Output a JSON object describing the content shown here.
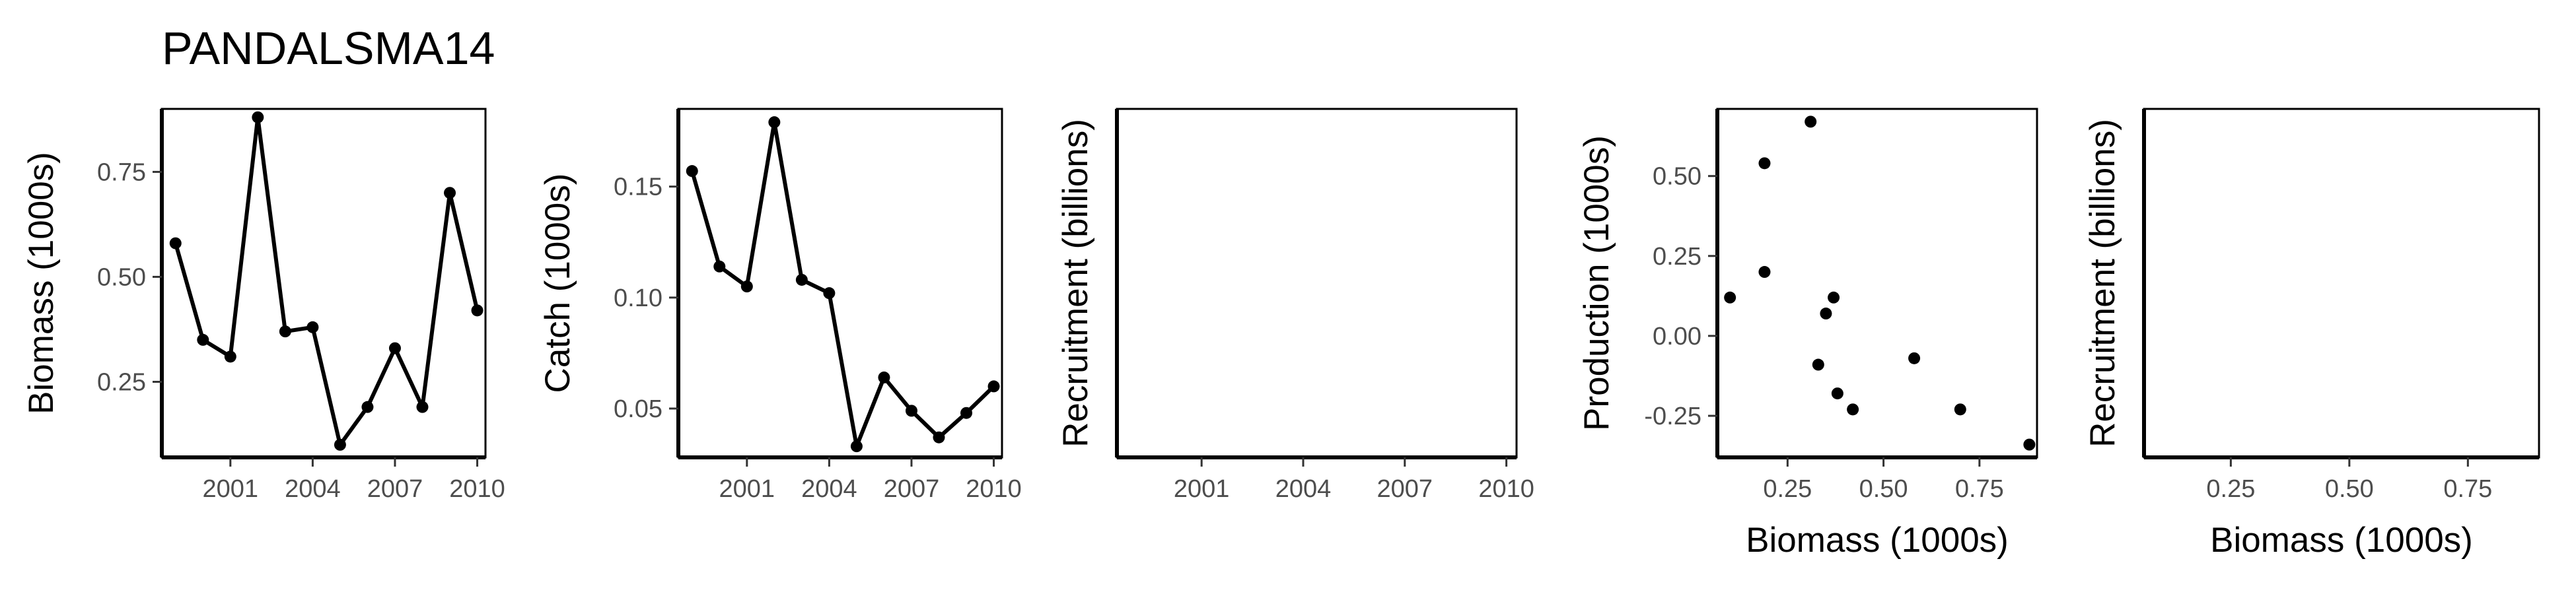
{
  "title": "PANDALSMA14",
  "chart_data": [
    {
      "type": "line",
      "ylabel": "Biomass (1000s)",
      "xlabel": "",
      "x": [
        1999,
        2000,
        2001,
        2002,
        2003,
        2004,
        2005,
        2006,
        2007,
        2008,
        2009,
        2010
      ],
      "values": [
        0.58,
        0.35,
        0.31,
        0.88,
        0.37,
        0.38,
        0.1,
        0.19,
        0.33,
        0.19,
        0.7,
        0.42
      ],
      "xlim": [
        1998.5,
        2010.3
      ],
      "ylim": [
        0.07,
        0.9
      ],
      "xticks": [
        2001,
        2004,
        2007,
        2010
      ],
      "yticks": [
        0.25,
        0.5,
        0.75
      ],
      "xtick_labels": [
        "2001",
        "2004",
        "2007",
        "2010"
      ],
      "ytick_labels": [
        "0.25",
        "0.50",
        "0.75"
      ]
    },
    {
      "type": "line",
      "ylabel": "Catch (1000s)",
      "xlabel": "",
      "x": [
        1999,
        2000,
        2001,
        2002,
        2003,
        2004,
        2005,
        2006,
        2007,
        2008,
        2009,
        2010
      ],
      "values": [
        0.157,
        0.114,
        0.105,
        0.179,
        0.108,
        0.102,
        0.033,
        0.064,
        0.049,
        0.037,
        0.048,
        0.06
      ],
      "xlim": [
        1998.5,
        2010.3
      ],
      "ylim": [
        0.028,
        0.185
      ],
      "xticks": [
        2001,
        2004,
        2007,
        2010
      ],
      "yticks": [
        0.05,
        0.1,
        0.15
      ],
      "xtick_labels": [
        "2001",
        "2004",
        "2007",
        "2010"
      ],
      "ytick_labels": [
        "0.05",
        "0.10",
        "0.15"
      ]
    },
    {
      "type": "line",
      "ylabel": "Recruitment (billions)",
      "xlabel": "",
      "x": [],
      "values": [],
      "xlim": [
        1998.5,
        2010.3
      ],
      "ylim": [
        0,
        1
      ],
      "xticks": [
        2001,
        2004,
        2007,
        2010
      ],
      "yticks": [],
      "xtick_labels": [
        "2001",
        "2004",
        "2007",
        "2010"
      ],
      "ytick_labels": []
    },
    {
      "type": "scatter",
      "ylabel": "Production (1000s)",
      "xlabel": "Biomass (1000s)",
      "x": [
        0.1,
        0.19,
        0.19,
        0.31,
        0.33,
        0.35,
        0.37,
        0.38,
        0.42,
        0.58,
        0.7,
        0.88
      ],
      "values": [
        0.12,
        0.54,
        0.2,
        0.67,
        -0.09,
        0.07,
        0.12,
        -0.18,
        -0.23,
        -0.07,
        -0.23,
        -0.34
      ],
      "xlim": [
        0.067,
        0.9
      ],
      "ylim": [
        -0.38,
        0.71
      ],
      "xticks": [
        0.25,
        0.5,
        0.75
      ],
      "yticks": [
        -0.25,
        0,
        0.25,
        0.5
      ],
      "xtick_labels": [
        "0.25",
        "0.50",
        "0.75"
      ],
      "ytick_labels": [
        "-0.25",
        "0.00",
        "0.25",
        "0.50"
      ]
    },
    {
      "type": "scatter",
      "ylabel": "Recruitment (billions)",
      "xlabel": "Biomass (1000s)",
      "x": [],
      "values": [],
      "xlim": [
        0.067,
        0.9
      ],
      "ylim": [
        0,
        1
      ],
      "xticks": [
        0.25,
        0.5,
        0.75
      ],
      "yticks": [],
      "xtick_labels": [
        "0.25",
        "0.50",
        "0.75"
      ],
      "ytick_labels": []
    }
  ]
}
